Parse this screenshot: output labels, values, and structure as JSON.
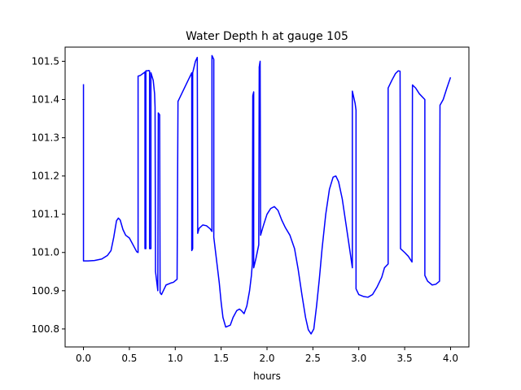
{
  "chart_data": {
    "type": "line",
    "title": "Water Depth h at gauge 105",
    "xlabel": "hours",
    "ylabel": "",
    "xlim": [
      -0.2,
      4.2
    ],
    "ylim": [
      100.753,
      101.537
    ],
    "xticks": [
      0.0,
      0.5,
      1.0,
      1.5,
      2.0,
      2.5,
      3.0,
      3.5,
      4.0
    ],
    "xtick_labels": [
      "0.0",
      "0.5",
      "1.0",
      "1.5",
      "2.0",
      "2.5",
      "3.0",
      "3.5",
      "4.0"
    ],
    "yticks": [
      100.8,
      100.9,
      101.0,
      101.1,
      101.2,
      101.3,
      101.4,
      101.5
    ],
    "ytick_labels": [
      "100.8",
      "100.9",
      "101.0",
      "101.1",
      "101.2",
      "101.3",
      "101.4",
      "101.5"
    ],
    "grid": false,
    "legend": "none",
    "series": [
      {
        "color": "#0000ff",
        "points": [
          [
            0.0,
            101.44
          ],
          [
            0.0,
            100.978
          ],
          [
            0.05,
            100.978
          ],
          [
            0.12,
            100.979
          ],
          [
            0.2,
            100.983
          ],
          [
            0.26,
            100.992
          ],
          [
            0.3,
            101.005
          ],
          [
            0.33,
            101.04
          ],
          [
            0.36,
            101.083
          ],
          [
            0.38,
            101.09
          ],
          [
            0.4,
            101.085
          ],
          [
            0.43,
            101.06
          ],
          [
            0.46,
            101.045
          ],
          [
            0.5,
            101.038
          ],
          [
            0.54,
            101.02
          ],
          [
            0.58,
            101.002
          ],
          [
            0.595,
            101.0
          ],
          [
            0.595,
            101.461
          ],
          [
            0.62,
            101.463
          ],
          [
            0.66,
            101.47
          ],
          [
            0.67,
            101.472
          ],
          [
            0.67,
            101.01
          ],
          [
            0.68,
            101.01
          ],
          [
            0.68,
            101.475
          ],
          [
            0.7,
            101.475
          ],
          [
            0.71,
            101.476
          ],
          [
            0.72,
            101.475
          ],
          [
            0.72,
            101.01
          ],
          [
            0.735,
            101.01
          ],
          [
            0.735,
            101.47
          ],
          [
            0.76,
            101.45
          ],
          [
            0.775,
            101.415
          ],
          [
            0.78,
            101.38
          ],
          [
            0.785,
            100.95
          ],
          [
            0.8,
            100.92
          ],
          [
            0.81,
            100.9
          ],
          [
            0.815,
            101.365
          ],
          [
            0.83,
            101.36
          ],
          [
            0.835,
            100.895
          ],
          [
            0.85,
            100.89
          ],
          [
            0.87,
            100.9
          ],
          [
            0.9,
            100.915
          ],
          [
            0.95,
            100.92
          ],
          [
            0.98,
            100.922
          ],
          [
            1.02,
            100.93
          ],
          [
            1.03,
            101.395
          ],
          [
            1.1,
            101.43
          ],
          [
            1.18,
            101.47
          ],
          [
            1.18,
            101.005
          ],
          [
            1.19,
            101.01
          ],
          [
            1.19,
            101.47
          ],
          [
            1.22,
            101.5
          ],
          [
            1.24,
            101.51
          ],
          [
            1.245,
            101.05
          ],
          [
            1.26,
            101.063
          ],
          [
            1.3,
            101.072
          ],
          [
            1.34,
            101.07
          ],
          [
            1.38,
            101.062
          ],
          [
            1.4,
            101.055
          ],
          [
            1.4,
            101.515
          ],
          [
            1.42,
            101.505
          ],
          [
            1.42,
            101.04
          ],
          [
            1.44,
            101.0
          ],
          [
            1.46,
            100.96
          ],
          [
            1.48,
            100.92
          ],
          [
            1.5,
            100.87
          ],
          [
            1.52,
            100.83
          ],
          [
            1.55,
            100.805
          ],
          [
            1.6,
            100.81
          ],
          [
            1.63,
            100.83
          ],
          [
            1.67,
            100.848
          ],
          [
            1.7,
            100.852
          ],
          [
            1.72,
            100.848
          ],
          [
            1.75,
            100.84
          ],
          [
            1.78,
            100.86
          ],
          [
            1.81,
            100.9
          ],
          [
            1.83,
            100.94
          ],
          [
            1.84,
            100.97
          ],
          [
            1.845,
            101.41
          ],
          [
            1.855,
            101.42
          ],
          [
            1.855,
            100.96
          ],
          [
            1.88,
            100.985
          ],
          [
            1.91,
            101.02
          ],
          [
            1.915,
            101.485
          ],
          [
            1.925,
            101.5
          ],
          [
            1.93,
            101.045
          ],
          [
            1.96,
            101.07
          ],
          [
            2.0,
            101.1
          ],
          [
            2.04,
            101.115
          ],
          [
            2.08,
            101.12
          ],
          [
            2.12,
            101.11
          ],
          [
            2.16,
            101.085
          ],
          [
            2.2,
            101.065
          ],
          [
            2.25,
            101.045
          ],
          [
            2.3,
            101.01
          ],
          [
            2.34,
            100.955
          ],
          [
            2.38,
            100.89
          ],
          [
            2.42,
            100.83
          ],
          [
            2.45,
            100.798
          ],
          [
            2.48,
            100.787
          ],
          [
            2.51,
            100.8
          ],
          [
            2.54,
            100.86
          ],
          [
            2.57,
            100.93
          ],
          [
            2.6,
            101.01
          ],
          [
            2.64,
            101.1
          ],
          [
            2.68,
            101.165
          ],
          [
            2.72,
            101.197
          ],
          [
            2.75,
            101.2
          ],
          [
            2.78,
            101.185
          ],
          [
            2.82,
            101.14
          ],
          [
            2.86,
            101.075
          ],
          [
            2.9,
            101.01
          ],
          [
            2.93,
            100.96
          ],
          [
            2.93,
            101.422
          ],
          [
            2.96,
            101.39
          ],
          [
            2.97,
            101.372
          ],
          [
            2.97,
            100.905
          ],
          [
            3.0,
            100.89
          ],
          [
            3.05,
            100.885
          ],
          [
            3.1,
            100.883
          ],
          [
            3.15,
            100.89
          ],
          [
            3.2,
            100.91
          ],
          [
            3.25,
            100.935
          ],
          [
            3.28,
            100.96
          ],
          [
            3.32,
            100.97
          ],
          [
            3.32,
            101.43
          ],
          [
            3.36,
            101.45
          ],
          [
            3.4,
            101.468
          ],
          [
            3.43,
            101.475
          ],
          [
            3.45,
            101.474
          ],
          [
            3.455,
            101.01
          ],
          [
            3.5,
            101.0
          ],
          [
            3.54,
            100.99
          ],
          [
            3.58,
            100.975
          ],
          [
            3.585,
            101.438
          ],
          [
            3.62,
            101.43
          ],
          [
            3.66,
            101.415
          ],
          [
            3.72,
            101.4
          ],
          [
            3.72,
            100.94
          ],
          [
            3.75,
            100.925
          ],
          [
            3.8,
            100.915
          ],
          [
            3.84,
            100.917
          ],
          [
            3.88,
            100.925
          ],
          [
            3.885,
            101.385
          ],
          [
            3.92,
            101.4
          ],
          [
            3.96,
            101.43
          ],
          [
            4.0,
            101.458
          ]
        ]
      }
    ]
  }
}
